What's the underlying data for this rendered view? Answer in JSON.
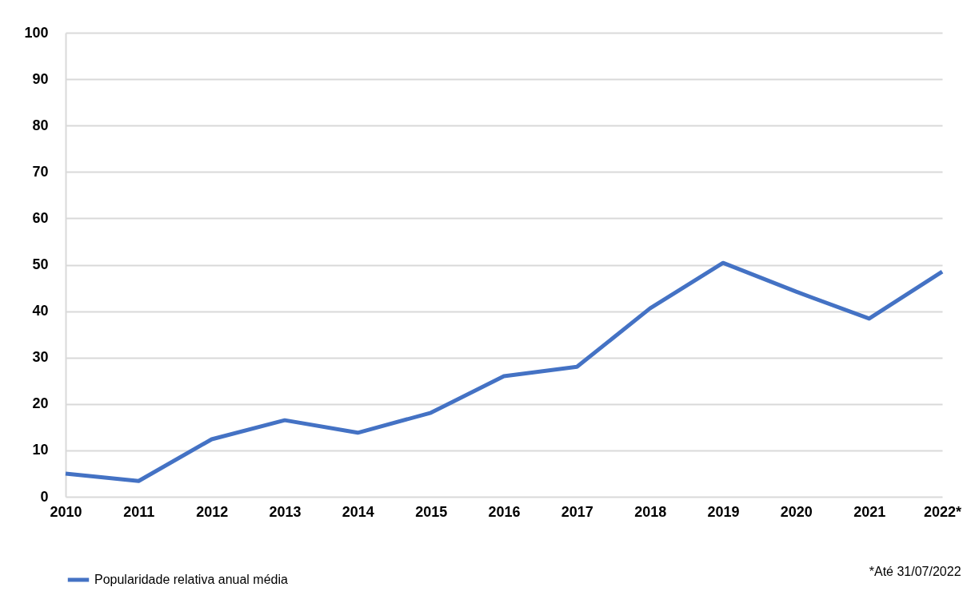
{
  "chart_data": {
    "type": "line",
    "categories": [
      "2010",
      "2011",
      "2012",
      "2013",
      "2014",
      "2015",
      "2016",
      "2017",
      "2018",
      "2019",
      "2020",
      "2021",
      "2022*"
    ],
    "series": [
      {
        "name": "Popularidade relativa anual média",
        "color": "#4472c4",
        "values": [
          5.0,
          3.4,
          12.4,
          16.5,
          13.8,
          18.1,
          26,
          28,
          40.6,
          50.4,
          44.2,
          38.4,
          48.5
        ]
      }
    ],
    "ylim": [
      0,
      100
    ],
    "yticks": [
      0,
      10,
      20,
      30,
      40,
      50,
      60,
      70,
      80,
      90,
      100
    ],
    "grid": "y",
    "legend": "bottom",
    "marker": "none",
    "line_style": "solid",
    "annotations": [
      "*Até 31/07/2022"
    ]
  }
}
